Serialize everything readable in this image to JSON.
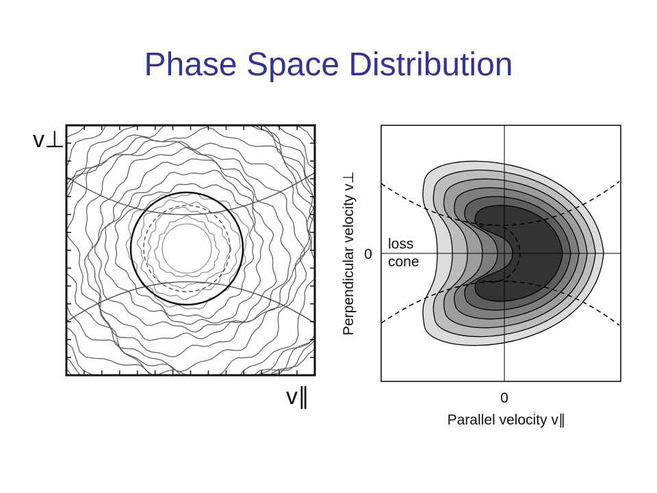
{
  "title": "Phase Space Distribution",
  "left_figure": {
    "y_label": "v⊥",
    "x_label": "v∥"
  },
  "right_figure": {
    "y_label": "Perpendicular velocity v⊥",
    "x_label": "Parallel velocity v∥",
    "y_tick": "0",
    "x_tick": "0",
    "annotation": [
      "loss",
      "cone"
    ]
  }
}
